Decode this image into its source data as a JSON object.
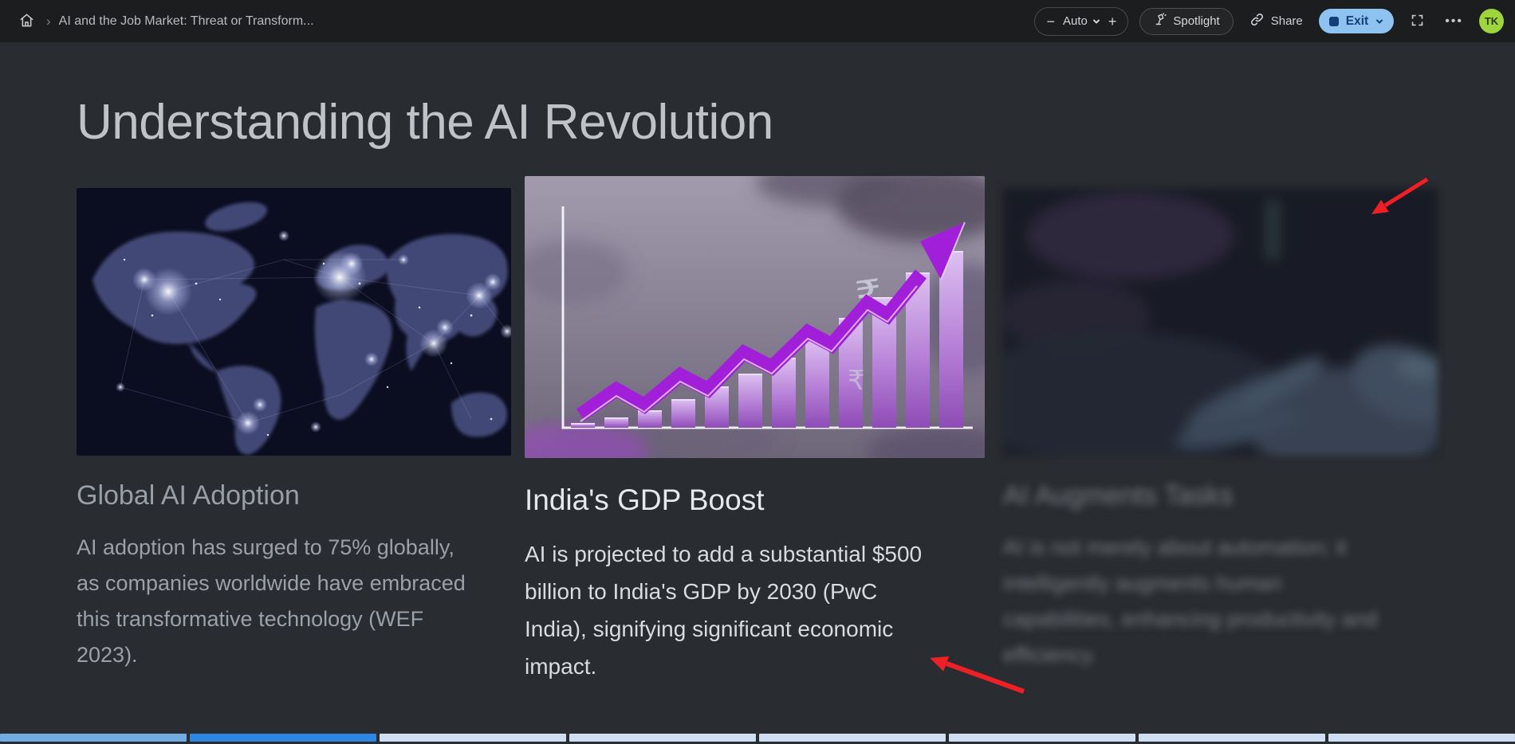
{
  "topbar": {
    "breadcrumb": "AI and the Job Market: Threat or Transform...",
    "zoom": {
      "minus": "−",
      "level": "Auto",
      "plus": "+"
    },
    "spotlight_label": "Spotlight",
    "share_label": "Share",
    "exit_label": "Exit",
    "more_label": "•••",
    "avatar_initials": "TK"
  },
  "slide": {
    "title": "Understanding the AI Revolution",
    "cards": [
      {
        "image": "world-map-night-lights",
        "title": "Global AI Adoption",
        "body": "AI adoption has surged to 75% globally,\nas companies worldwide have embraced\nthis transformative technology (WEF\n2023)."
      },
      {
        "image": "purple-growth-bar-chart-with-rupee-arrow",
        "title": "India's GDP Boost",
        "body": "AI is projected to add a substantial $500\nbillion to India's GDP by 2030 (PwC\nIndia), signifying significant economic\nimpact."
      },
      {
        "image": "blurred-robotic-hand",
        "title": "AI Augments Tasks",
        "body": "AI is not merely about automation; it\nintelligently augments human\ncapabilities, enhancing productivity and\nefficiency."
      }
    ]
  },
  "annotations": {
    "laser_arrow_color": "#ee2025",
    "arrows": 2
  },
  "progress": {
    "segments": [
      "past",
      "current",
      "future",
      "future",
      "future",
      "future",
      "future",
      "future"
    ],
    "colors": {
      "past": "#73ace2",
      "current": "#2e86e2",
      "future": "#cfdff3"
    }
  },
  "colors": {
    "topbar_bg": "#1b1d1f",
    "slide_bg": "#292c30",
    "exit_pill_bg": "#8ec2f0",
    "exit_pill_fg": "#143e78",
    "avatar_bg": "#9ed43c",
    "title_fg": "#bfc3c8"
  }
}
